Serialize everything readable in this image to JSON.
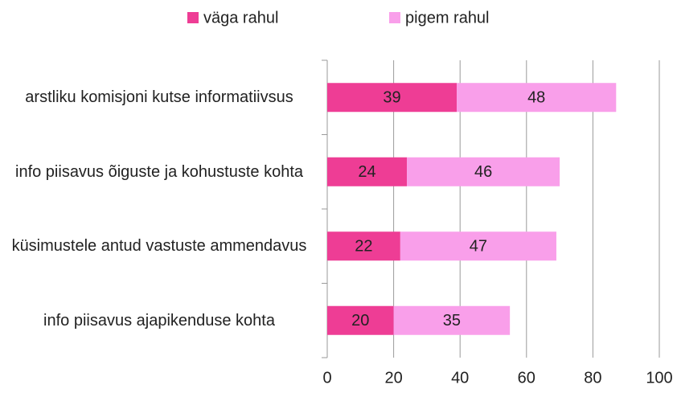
{
  "chart_data": {
    "type": "stacked-bar-horizontal",
    "categories": [
      "arstliku komisjoni kutse informatiivsus",
      "info piisavus õiguste ja kohustuste kohta",
      "küsimustele antud vastuste ammendavus",
      "info piisavus ajapikenduse kohta"
    ],
    "series": [
      {
        "name": "väga rahul",
        "color": "#ee3d95",
        "values": [
          39,
          24,
          22,
          20
        ]
      },
      {
        "name": "pigem rahul",
        "color": "#f99fea",
        "values": [
          48,
          46,
          47,
          35
        ]
      }
    ],
    "xlim": [
      0,
      100
    ],
    "xticks": [
      0,
      20,
      40,
      60,
      80,
      100
    ],
    "grid": true,
    "legend": "top"
  }
}
